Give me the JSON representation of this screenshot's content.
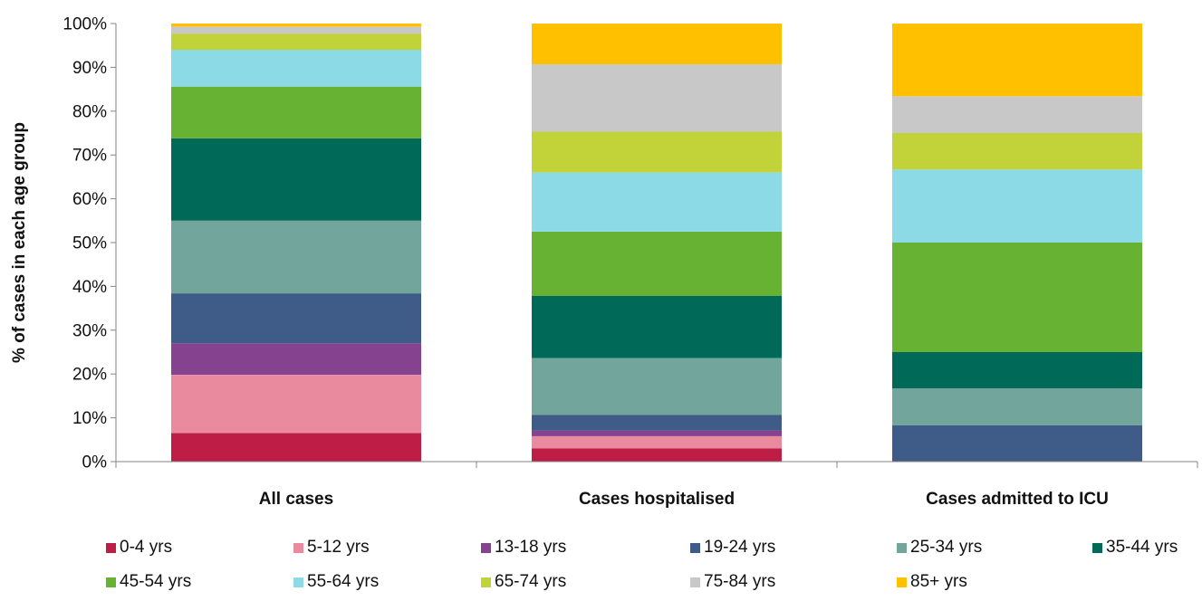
{
  "chart_data": {
    "type": "bar",
    "stacked": true,
    "percent": true,
    "title": "",
    "xlabel": "",
    "ylabel": "% of cases in each age group",
    "ylim": [
      0,
      100
    ],
    "yticks": [
      0,
      10,
      20,
      30,
      40,
      50,
      60,
      70,
      80,
      90,
      100
    ],
    "ytick_labels": [
      "0%",
      "10%",
      "20%",
      "30%",
      "40%",
      "50%",
      "60%",
      "70%",
      "80%",
      "90%",
      "100%"
    ],
    "categories": [
      "All cases",
      "Cases hospitalised",
      "Cases admitted to ICU"
    ],
    "grid": false,
    "legend_position": "bottom",
    "series": [
      {
        "name": "0-4 yrs",
        "color": "#BE1E45",
        "values": [
          6.5,
          3.0,
          0.0
        ]
      },
      {
        "name": "5-12 yrs",
        "color": "#E98A9F",
        "values": [
          13.3,
          2.8,
          0.0
        ]
      },
      {
        "name": "13-18 yrs",
        "color": "#84428F",
        "values": [
          7.2,
          1.3,
          0.0
        ]
      },
      {
        "name": "19-24 yrs",
        "color": "#3E5C87",
        "values": [
          11.4,
          3.6,
          8.3
        ]
      },
      {
        "name": "25-34 yrs",
        "color": "#72A59C",
        "values": [
          16.6,
          12.9,
          8.4
        ]
      },
      {
        "name": "35-44 yrs",
        "color": "#006957",
        "values": [
          18.8,
          14.2,
          8.3
        ]
      },
      {
        "name": "45-54 yrs",
        "color": "#67B133",
        "values": [
          11.8,
          14.7,
          25.0
        ]
      },
      {
        "name": "55-64 yrs",
        "color": "#8CDAE6",
        "values": [
          8.4,
          13.5,
          16.7
        ]
      },
      {
        "name": "65-74 yrs",
        "color": "#C2D239",
        "values": [
          3.7,
          9.3,
          8.3
        ]
      },
      {
        "name": "75-84 yrs",
        "color": "#C8C8C8",
        "values": [
          1.6,
          15.4,
          8.4
        ]
      },
      {
        "name": "85+ yrs",
        "color": "#FFC000",
        "values": [
          0.7,
          9.3,
          16.6
        ]
      }
    ]
  }
}
